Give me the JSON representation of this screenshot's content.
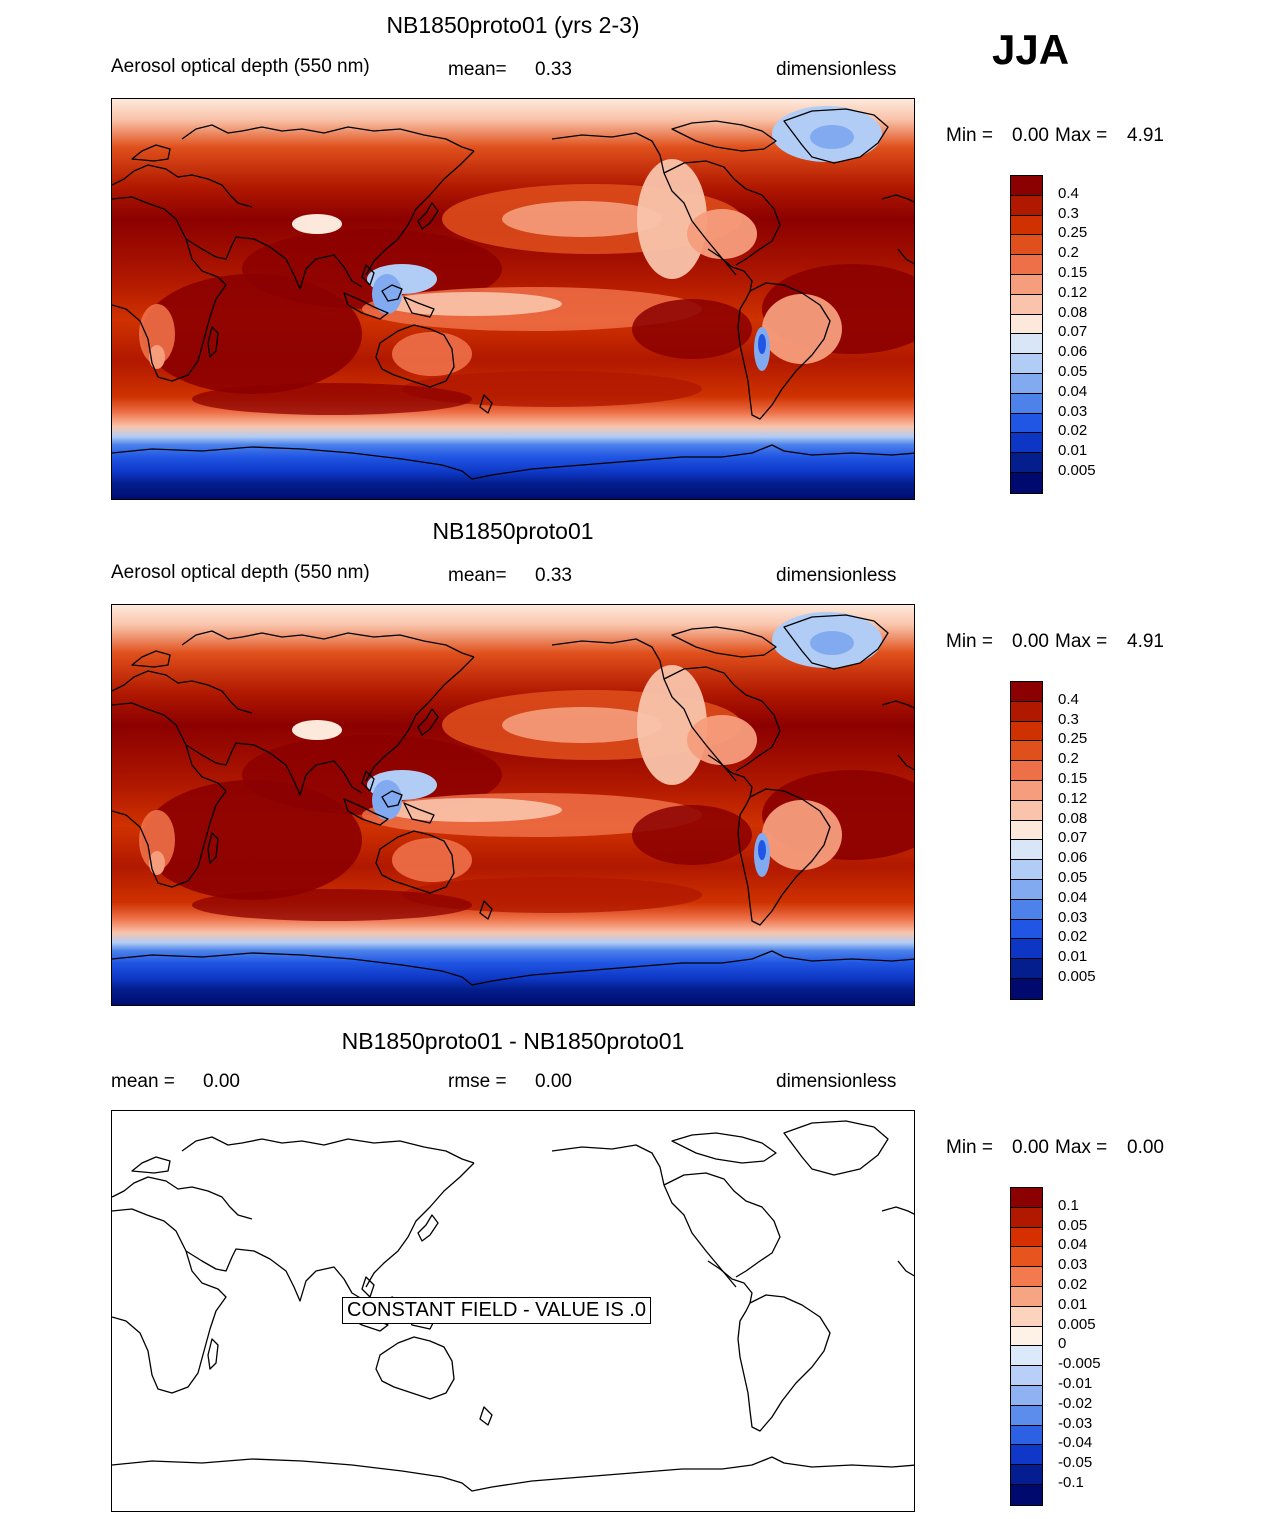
{
  "season": "JJA",
  "panels": [
    {
      "title": "NB1850proto01 (yrs 2-3)",
      "left": "Aerosol optical depth (550 nm)",
      "mid_label": "mean=",
      "mid_value": "0.33",
      "right": "dimensionless",
      "min_label": "Min =",
      "min_value": "0.00",
      "max_label": "Max =",
      "max_value": "4.91"
    },
    {
      "title": "NB1850proto01",
      "left": "Aerosol optical depth (550 nm)",
      "mid_label": "mean=",
      "mid_value": "0.33",
      "right": "dimensionless",
      "min_label": "Min =",
      "min_value": "0.00",
      "max_label": "Max =",
      "max_value": "4.91"
    },
    {
      "title": "NB1850proto01 - NB1850proto01",
      "left_label": "mean =",
      "left_value": "0.00",
      "mid_label": "rmse =",
      "mid_value": "0.00",
      "right": "dimensionless",
      "min_label": "Min =",
      "min_value": "0.00",
      "max_label": "Max =",
      "max_value": "0.00",
      "constant_field": "CONSTANT FIELD - VALUE IS .0"
    }
  ],
  "colorbar_aod": {
    "colors": [
      "#8b0000",
      "#b01800",
      "#cf3200",
      "#e0501c",
      "#ee7048",
      "#f59d7c",
      "#f9c4ab",
      "#fde9dc",
      "#d8e6f8",
      "#b1cdf5",
      "#82aaf0",
      "#4c82ea",
      "#2156e4",
      "#0d36c4",
      "#041e8e",
      "#000a6e"
    ],
    "labels": [
      "0.4",
      "0.3",
      "0.25",
      "0.2",
      "0.15",
      "0.12",
      "0.08",
      "0.07",
      "0.06",
      "0.05",
      "0.04",
      "0.03",
      "0.02",
      "0.01",
      "0.005"
    ]
  },
  "colorbar_diff": {
    "colors": [
      "#8b0000",
      "#b01800",
      "#d63000",
      "#e8541e",
      "#f27a4e",
      "#f6a583",
      "#fcd3bd",
      "#fef1e6",
      "#dce9fa",
      "#b8d0f7",
      "#8fb2f2",
      "#5c8cec",
      "#2e60e4",
      "#1038c8",
      "#041e92",
      "#000a6e"
    ],
    "labels": [
      "0.1",
      "0.05",
      "0.04",
      "0.03",
      "0.02",
      "0.01",
      "0.005",
      "0",
      "-0.005",
      "-0.01",
      "-0.02",
      "-0.03",
      "-0.04",
      "-0.05",
      "-0.1"
    ]
  }
}
